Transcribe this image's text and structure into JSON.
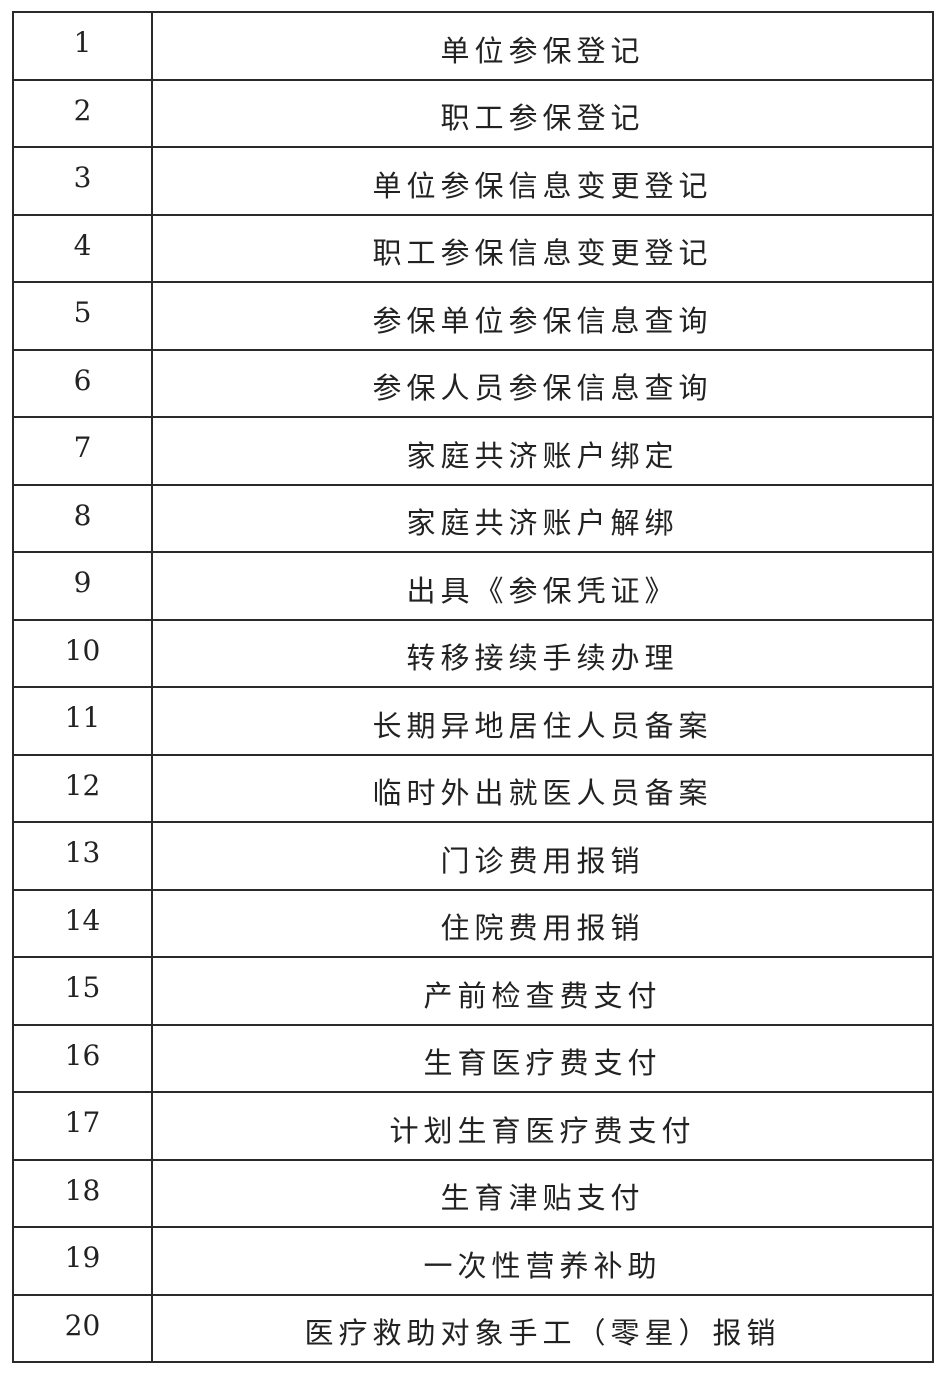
{
  "table": {
    "rows": [
      {
        "no": "1",
        "item": "单位参保登记"
      },
      {
        "no": "2",
        "item": "职工参保登记"
      },
      {
        "no": "3",
        "item": "单位参保信息变更登记"
      },
      {
        "no": "4",
        "item": "职工参保信息变更登记"
      },
      {
        "no": "5",
        "item": "参保单位参保信息查询"
      },
      {
        "no": "6",
        "item": "参保人员参保信息查询"
      },
      {
        "no": "7",
        "item": "家庭共济账户绑定"
      },
      {
        "no": "8",
        "item": "家庭共济账户解绑"
      },
      {
        "no": "9",
        "item": "出具《参保凭证》"
      },
      {
        "no": "10",
        "item": "转移接续手续办理"
      },
      {
        "no": "11",
        "item": "长期异地居住人员备案"
      },
      {
        "no": "12",
        "item": "临时外出就医人员备案"
      },
      {
        "no": "13",
        "item": "门诊费用报销"
      },
      {
        "no": "14",
        "item": "住院费用报销"
      },
      {
        "no": "15",
        "item": "产前检查费支付"
      },
      {
        "no": "16",
        "item": "生育医疗费支付"
      },
      {
        "no": "17",
        "item": "计划生育医疗费支付"
      },
      {
        "no": "18",
        "item": "生育津贴支付"
      },
      {
        "no": "19",
        "item": "一次性营养补助"
      },
      {
        "no": "20",
        "item": "医疗救助对象手工（零星）报销"
      }
    ]
  }
}
